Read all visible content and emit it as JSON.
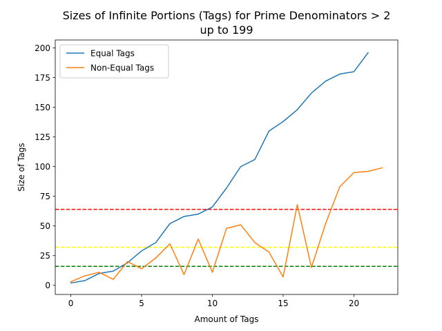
{
  "chart_data": {
    "type": "line",
    "title": "Sizes of Infinite Portions (Tags) for Prime Denominators > 2\nup to 199",
    "xlabel": "Amount of Tags",
    "ylabel": "Size of Tags",
    "xlim": [
      -1.1,
      23.1
    ],
    "ylim": [
      -7.7,
      206.7
    ],
    "xticks": [
      0,
      5,
      10,
      15,
      20
    ],
    "yticks": [
      0,
      25,
      50,
      75,
      100,
      125,
      150,
      175,
      200
    ],
    "grid": false,
    "legend_position": "upper left",
    "series": [
      {
        "name": "Equal Tags",
        "color": "#1f77b4",
        "x": [
          0,
          1,
          2,
          3,
          4,
          5,
          6,
          7,
          8,
          9,
          10,
          11,
          12,
          13,
          14,
          15,
          16,
          17,
          18,
          19,
          20,
          21
        ],
        "y": [
          2,
          4,
          10,
          12,
          19,
          29,
          36,
          52,
          58,
          60,
          66,
          82,
          100,
          106,
          130,
          138,
          148,
          162,
          172,
          178,
          180,
          196
        ]
      },
      {
        "name": "Non-Equal Tags",
        "color": "#ff7f0e",
        "x": [
          0,
          1,
          2,
          3,
          4,
          5,
          6,
          7,
          8,
          9,
          10,
          11,
          12,
          13,
          14,
          15,
          16,
          17,
          18,
          19,
          20,
          21,
          22
        ],
        "y": [
          3,
          8,
          11,
          5,
          20,
          14,
          23,
          35,
          9,
          39,
          11,
          48,
          51,
          36,
          28,
          7,
          68,
          15,
          52,
          83,
          95,
          96,
          99
        ]
      }
    ],
    "hlines": [
      {
        "y": 64,
        "color": "#ff0000",
        "style": "dashed"
      },
      {
        "y": 32,
        "color": "#ffff00",
        "style": "dashed"
      },
      {
        "y": 16,
        "color": "#008000",
        "style": "dashed"
      }
    ]
  }
}
